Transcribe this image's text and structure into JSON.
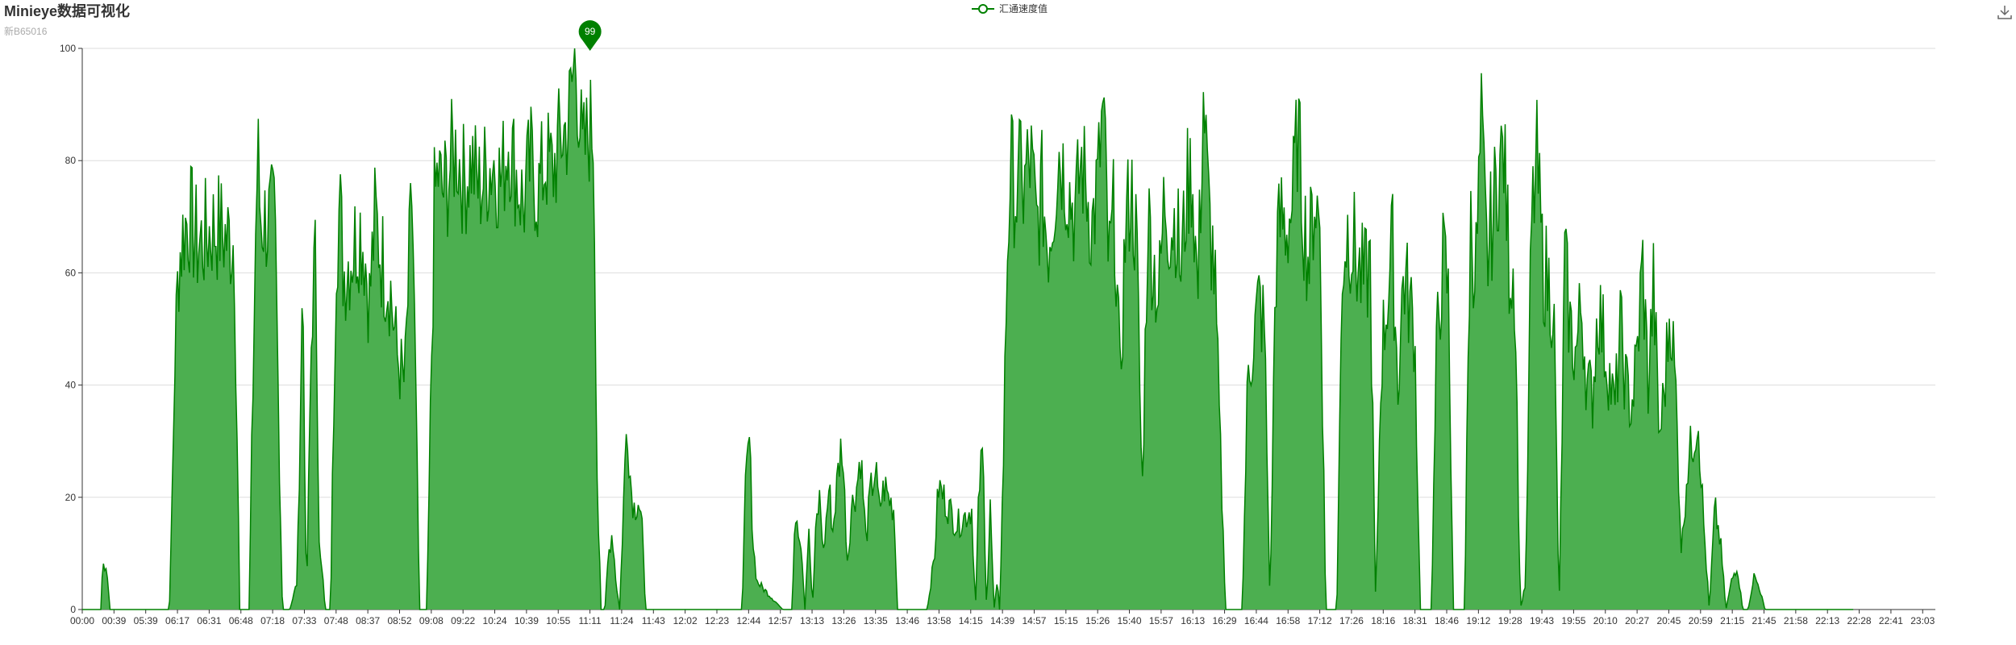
{
  "title": "Minieye数据可视化",
  "subtitle": "新B65016",
  "toolbox": {
    "save_icon": "download-icon"
  },
  "colors": {
    "line": "#008000",
    "area": "#4caf50",
    "grid": "#dddddd",
    "axis": "#333333"
  },
  "chart_data": {
    "type": "area",
    "title": "Minieye数据可视化",
    "subtitle": "新B65016",
    "legend": [
      "汇通速度值"
    ],
    "legend_position": "top-center",
    "grid": true,
    "ylim": [
      0,
      100
    ],
    "yticks": [
      0,
      20,
      40,
      60,
      80,
      100
    ],
    "x_labels": [
      "00:00",
      "00:39",
      "05:39",
      "06:17",
      "06:31",
      "06:48",
      "07:18",
      "07:33",
      "07:48",
      "08:37",
      "08:52",
      "09:08",
      "09:22",
      "10:24",
      "10:39",
      "10:55",
      "11:11",
      "11:24",
      "11:43",
      "12:02",
      "12:23",
      "12:44",
      "12:57",
      "13:13",
      "13:26",
      "13:35",
      "13:46",
      "13:58",
      "14:15",
      "14:39",
      "14:57",
      "15:15",
      "15:26",
      "15:40",
      "15:57",
      "16:13",
      "16:29",
      "16:44",
      "16:58",
      "17:12",
      "17:26",
      "18:16",
      "18:31",
      "18:46",
      "19:12",
      "19:28",
      "19:43",
      "19:55",
      "20:10",
      "20:27",
      "20:45",
      "20:59",
      "21:15",
      "21:45",
      "21:58",
      "22:13",
      "22:28",
      "22:41",
      "23:03"
    ],
    "series": [
      {
        "name": "汇通速度值",
        "max_marker": {
          "label": "99",
          "value": 99,
          "x_fraction": 0.274
        },
        "profile_x": [
          0.0,
          0.01,
          0.011,
          0.013,
          0.015,
          0.016,
          0.047,
          0.048,
          0.05,
          0.052,
          0.055,
          0.058,
          0.062,
          0.066,
          0.07,
          0.074,
          0.078,
          0.082,
          0.085,
          0.087,
          0.09,
          0.094,
          0.095,
          0.096,
          0.1,
          0.104,
          0.108,
          0.112,
          0.116,
          0.119,
          0.121,
          0.124,
          0.126,
          0.128,
          0.13,
          0.131,
          0.134,
          0.137,
          0.139,
          0.141,
          0.15,
          0.152,
          0.155,
          0.158,
          0.162,
          0.166,
          0.17,
          0.174,
          0.178,
          0.182,
          0.186,
          0.19,
          0.192,
          0.194,
          0.197,
          0.199,
          0.202,
          0.206,
          0.21,
          0.214,
          0.218,
          0.222,
          0.226,
          0.23,
          0.234,
          0.238,
          0.242,
          0.246,
          0.25,
          0.254,
          0.258,
          0.262,
          0.266,
          0.27,
          0.274,
          0.276,
          0.278,
          0.28,
          0.282,
          0.284,
          0.286,
          0.288,
          0.29,
          0.292,
          0.294,
          0.296,
          0.298,
          0.3,
          0.302,
          0.304,
          0.306,
          0.31,
          0.35,
          0.352,
          0.354,
          0.356,
          0.358,
          0.36,
          0.362,
          0.364,
          0.378,
          0.38,
          0.383,
          0.385,
          0.388,
          0.39,
          0.392,
          0.394,
          0.396,
          0.398,
          0.4,
          0.403,
          0.405,
          0.408,
          0.41,
          0.413,
          0.415,
          0.418,
          0.42,
          0.423,
          0.425,
          0.428,
          0.43,
          0.433,
          0.435,
          0.438,
          0.44,
          0.443,
          0.445,
          0.448,
          0.45,
          0.453,
          0.456,
          0.46,
          0.462,
          0.472,
          0.48,
          0.482,
          0.484,
          0.486,
          0.488,
          0.49,
          0.492,
          0.494,
          0.495,
          0.497,
          0.499,
          0.501,
          0.503,
          0.505,
          0.507,
          0.508,
          0.509,
          0.512,
          0.515,
          0.518,
          0.521,
          0.524,
          0.527,
          0.53,
          0.533,
          0.536,
          0.539,
          0.542,
          0.545,
          0.548,
          0.551,
          0.554,
          0.557,
          0.56,
          0.563,
          0.566,
          0.569,
          0.572,
          0.575,
          0.578,
          0.581,
          0.584,
          0.587,
          0.59,
          0.593,
          0.596,
          0.599,
          0.602,
          0.605,
          0.608,
          0.611,
          0.614,
          0.617,
          0.62,
          0.623,
          0.626,
          0.629,
          0.632,
          0.635,
          0.638,
          0.641,
          0.644,
          0.647,
          0.65,
          0.653,
          0.656,
          0.659,
          0.662,
          0.665,
          0.668,
          0.671,
          0.674,
          0.677,
          0.68,
          0.683,
          0.686,
          0.689,
          0.692,
          0.695,
          0.698,
          0.701,
          0.704,
          0.707,
          0.71,
          0.713,
          0.716,
          0.719,
          0.722,
          0.725,
          0.728,
          0.731,
          0.734,
          0.737,
          0.74,
          0.743,
          0.746,
          0.749,
          0.752,
          0.755,
          0.758,
          0.761,
          0.764,
          0.767,
          0.77,
          0.773,
          0.776,
          0.779,
          0.782,
          0.785,
          0.788,
          0.791,
          0.794,
          0.797,
          0.8,
          0.803,
          0.806,
          0.809,
          0.812,
          0.815,
          0.818,
          0.821,
          0.824,
          0.827,
          0.83,
          0.833,
          0.836,
          0.839,
          0.842,
          0.845,
          0.848,
          0.851,
          0.854,
          0.857,
          0.86,
          0.863,
          0.866,
          0.869,
          0.872,
          0.875,
          0.878,
          0.881,
          0.884,
          0.887,
          0.89,
          0.893,
          0.896,
          0.899,
          0.902,
          0.905,
          0.908,
          0.911,
          0.914,
          0.917,
          0.92,
          0.923,
          0.926,
          0.929,
          0.932,
          0.935,
          0.938,
          0.941,
          0.944,
          0.947,
          0.95,
          0.953,
          0.956,
          0.959,
          0.962,
          0.965,
          0.968,
          0.971,
          0.974,
          0.977,
          0.98,
          0.983,
          0.986,
          0.989,
          0.992,
          0.995,
          0.998,
          1.0
        ],
        "profile_y": [
          0,
          0,
          8,
          8,
          0,
          0,
          0,
          12,
          45,
          62,
          68,
          70,
          65,
          66,
          68,
          68,
          66,
          66,
          0,
          0,
          0,
          75,
          80,
          70,
          69,
          69,
          0,
          0,
          5,
          60,
          0,
          55,
          62,
          10,
          5,
          0,
          0,
          65,
          72,
          60,
          68,
          65,
          55,
          70,
          62,
          58,
          45,
          40,
          75,
          0,
          0,
          72,
          78,
          74,
          76,
          80,
          82,
          76,
          80,
          75,
          78,
          80,
          76,
          84,
          78,
          72,
          80,
          74,
          80,
          78,
          84,
          86,
          99,
          80,
          86,
          85,
          20,
          0,
          0,
          10,
          14,
          5,
          0,
          18,
          35,
          22,
          18,
          20,
          15,
          0,
          0,
          0,
          0,
          0,
          0,
          0,
          22,
          30,
          12,
          5,
          0,
          0,
          0,
          18,
          12,
          0,
          16,
          0,
          15,
          20,
          10,
          22,
          14,
          25,
          30,
          8,
          18,
          22,
          28,
          12,
          20,
          25,
          18,
          22,
          20,
          18,
          0,
          0,
          0,
          0,
          0,
          0,
          0,
          10,
          22,
          15,
          18,
          0,
          22,
          28,
          0,
          18,
          0,
          5,
          0,
          25,
          62,
          80,
          75,
          72,
          85,
          70,
          78,
          80,
          68,
          75,
          65,
          72,
          82,
          78,
          74,
          70,
          80,
          75,
          68,
          76,
          90,
          60,
          72,
          40,
          68,
          75,
          65,
          20,
          70,
          62,
          55,
          74,
          68,
          70,
          60,
          75,
          78,
          55,
          92,
          70,
          60,
          30,
          0,
          0,
          0,
          0,
          42,
          48,
          55,
          50,
          0,
          62,
          70,
          68,
          72,
          86,
          70,
          62,
          74,
          68,
          0,
          0,
          0,
          62,
          68,
          65,
          60,
          58,
          62,
          0,
          45,
          55,
          65,
          40,
          60,
          55,
          50,
          0,
          0,
          0,
          48,
          62,
          58,
          0,
          0,
          0,
          70,
          60,
          86,
          62,
          70,
          78,
          82,
          62,
          60,
          0,
          5,
          68,
          80,
          62,
          58,
          55,
          0,
          62,
          50,
          45,
          55,
          40,
          38,
          55,
          48,
          42,
          35,
          50,
          40,
          36,
          45,
          62,
          40,
          58,
          30,
          40,
          55,
          38,
          10,
          25,
          30,
          35,
          15,
          0,
          18,
          12,
          0,
          5,
          8,
          0,
          0,
          6,
          4,
          0,
          0,
          0,
          0,
          0,
          0,
          0,
          0,
          0,
          0,
          0,
          0,
          0,
          0,
          0,
          0,
          0
        ]
      }
    ]
  }
}
